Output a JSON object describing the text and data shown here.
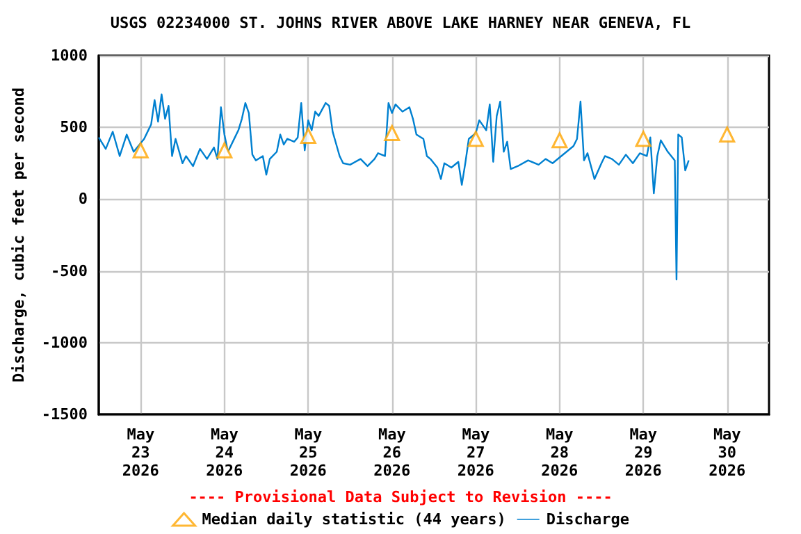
{
  "chart_data": {
    "type": "line",
    "title": "USGS 02234000 ST. JOHNS RIVER ABOVE LAKE HARNEY NEAR GENEVA, FL",
    "ylabel": "Discharge, cubic feet per second",
    "annotations": [
      "---- Provisional Data Subject to Revision ----"
    ],
    "xlim": [
      "2026-05-22T12:00",
      "2026-05-30T12:00"
    ],
    "xticks": [
      {
        "value": "2026-05-23",
        "label": "May\n23\n2026"
      },
      {
        "value": "2026-05-24",
        "label": "May\n24\n2026"
      },
      {
        "value": "2026-05-25",
        "label": "May\n25\n2026"
      },
      {
        "value": "2026-05-26",
        "label": "May\n26\n2026"
      },
      {
        "value": "2026-05-27",
        "label": "May\n27\n2026"
      },
      {
        "value": "2026-05-28",
        "label": "May\n28\n2026"
      },
      {
        "value": "2026-05-29",
        "label": "May\n29\n2026"
      },
      {
        "value": "2026-05-30",
        "label": "May\n30\n2026"
      }
    ],
    "ylim": [
      -1500,
      1000
    ],
    "yticks": [
      -1500,
      -1000,
      -500,
      0,
      500,
      1000
    ],
    "grid": true,
    "legend": "bottom",
    "series": [
      {
        "name": "Median daily statistic (44 years)",
        "type": "scatter",
        "marker": "triangle",
        "color": "#ffa500",
        "x": [
          "2026-05-23",
          "2026-05-24",
          "2026-05-25",
          "2026-05-26",
          "2026-05-27",
          "2026-05-28",
          "2026-05-29",
          "2026-05-30"
        ],
        "values": [
          340,
          340,
          440,
          460,
          420,
          410,
          420,
          450
        ]
      },
      {
        "name": "Discharge",
        "marker": "none",
        "color": "#0080d0",
        "x": [
          "2026-05-22T12:00",
          "2026-05-22T14:00",
          "2026-05-22T16:00",
          "2026-05-22T18:00",
          "2026-05-22T20:00",
          "2026-05-22T22:00",
          "2026-05-23T01:00",
          "2026-05-23T02:00",
          "2026-05-23T03:00",
          "2026-05-23T04:00",
          "2026-05-23T05:00",
          "2026-05-23T06:00",
          "2026-05-23T07:00",
          "2026-05-23T08:00",
          "2026-05-23T09:00",
          "2026-05-23T10:00",
          "2026-05-23T12:00",
          "2026-05-23T13:00",
          "2026-05-23T15:00",
          "2026-05-23T17:00",
          "2026-05-23T19:00",
          "2026-05-23T21:00",
          "2026-05-23T22:00",
          "2026-05-23T23:00",
          "2026-05-24T00:00",
          "2026-05-24T01:00",
          "2026-05-24T03:00",
          "2026-05-24T04:00",
          "2026-05-24T05:00",
          "2026-05-24T06:00",
          "2026-05-24T07:00",
          "2026-05-24T08:00",
          "2026-05-24T09:00",
          "2026-05-24T11:00",
          "2026-05-24T12:00",
          "2026-05-24T13:00",
          "2026-05-24T15:00",
          "2026-05-24T16:00",
          "2026-05-24T17:00",
          "2026-05-24T18:00",
          "2026-05-24T20:00",
          "2026-05-24T21:00",
          "2026-05-24T22:00",
          "2026-05-24T23:00",
          "2026-05-25T00:00",
          "2026-05-25T01:00",
          "2026-05-25T02:00",
          "2026-05-25T03:00",
          "2026-05-25T05:00",
          "2026-05-25T06:00",
          "2026-05-25T07:00",
          "2026-05-25T09:00",
          "2026-05-25T10:00",
          "2026-05-25T12:00",
          "2026-05-25T15:00",
          "2026-05-25T17:00",
          "2026-05-25T19:00",
          "2026-05-25T20:00",
          "2026-05-25T22:00",
          "2026-05-25T23:00",
          "2026-05-26T00:00",
          "2026-05-26T01:00",
          "2026-05-26T03:00",
          "2026-05-26T05:00",
          "2026-05-26T06:00",
          "2026-05-26T07:00",
          "2026-05-26T09:00",
          "2026-05-26T10:00",
          "2026-05-26T11:00",
          "2026-05-26T13:00",
          "2026-05-26T14:00",
          "2026-05-26T15:00",
          "2026-05-26T17:00",
          "2026-05-26T19:00",
          "2026-05-26T20:00",
          "2026-05-26T21:00",
          "2026-05-26T22:00",
          "2026-05-27T00:00",
          "2026-05-27T01:00",
          "2026-05-27T03:00",
          "2026-05-27T04:00",
          "2026-05-27T05:00",
          "2026-05-27T06:00",
          "2026-05-27T07:00",
          "2026-05-27T08:00",
          "2026-05-27T09:00",
          "2026-05-27T10:00",
          "2026-05-27T12:00",
          "2026-05-27T15:00",
          "2026-05-27T18:00",
          "2026-05-27T20:00",
          "2026-05-27T22:00",
          "2026-05-28T00:00",
          "2026-05-28T02:00",
          "2026-05-28T04:00",
          "2026-05-28T05:00",
          "2026-05-28T06:00",
          "2026-05-28T07:00",
          "2026-05-28T08:00",
          "2026-05-28T10:00",
          "2026-05-28T12:00",
          "2026-05-28T13:00",
          "2026-05-28T15:00",
          "2026-05-28T17:00",
          "2026-05-28T19:00",
          "2026-05-28T21:00",
          "2026-05-28T23:00",
          "2026-05-29T01:00",
          "2026-05-29T02:00",
          "2026-05-29T03:00",
          "2026-05-29T04:00",
          "2026-05-29T05:00",
          "2026-05-29T07:00",
          "2026-05-29T09:00",
          "2026-05-29T09:30",
          "2026-05-29T10:00",
          "2026-05-29T11:00",
          "2026-05-29T12:00",
          "2026-05-29T13:00"
        ],
        "values": [
          430,
          350,
          470,
          300,
          450,
          330,
          420,
          470,
          520,
          690,
          540,
          730,
          560,
          650,
          300,
          420,
          250,
          300,
          230,
          350,
          280,
          360,
          280,
          640,
          450,
          330,
          430,
          480,
          560,
          670,
          600,
          310,
          270,
          300,
          170,
          280,
          330,
          450,
          380,
          420,
          400,
          430,
          670,
          340,
          550,
          480,
          610,
          580,
          670,
          650,
          470,
          300,
          250,
          240,
          280,
          230,
          280,
          320,
          300,
          670,
          600,
          660,
          610,
          640,
          560,
          450,
          420,
          300,
          280,
          220,
          140,
          250,
          220,
          260,
          100,
          250,
          420,
          460,
          550,
          480,
          660,
          260,
          580,
          680,
          330,
          400,
          210,
          230,
          270,
          240,
          280,
          250,
          290,
          330,
          370,
          420,
          680,
          270,
          320,
          140,
          250,
          300,
          280,
          240,
          310,
          250,
          320,
          300,
          430,
          40,
          300,
          410,
          330,
          270,
          -560,
          450,
          430,
          200,
          270
        ]
      }
    ]
  }
}
